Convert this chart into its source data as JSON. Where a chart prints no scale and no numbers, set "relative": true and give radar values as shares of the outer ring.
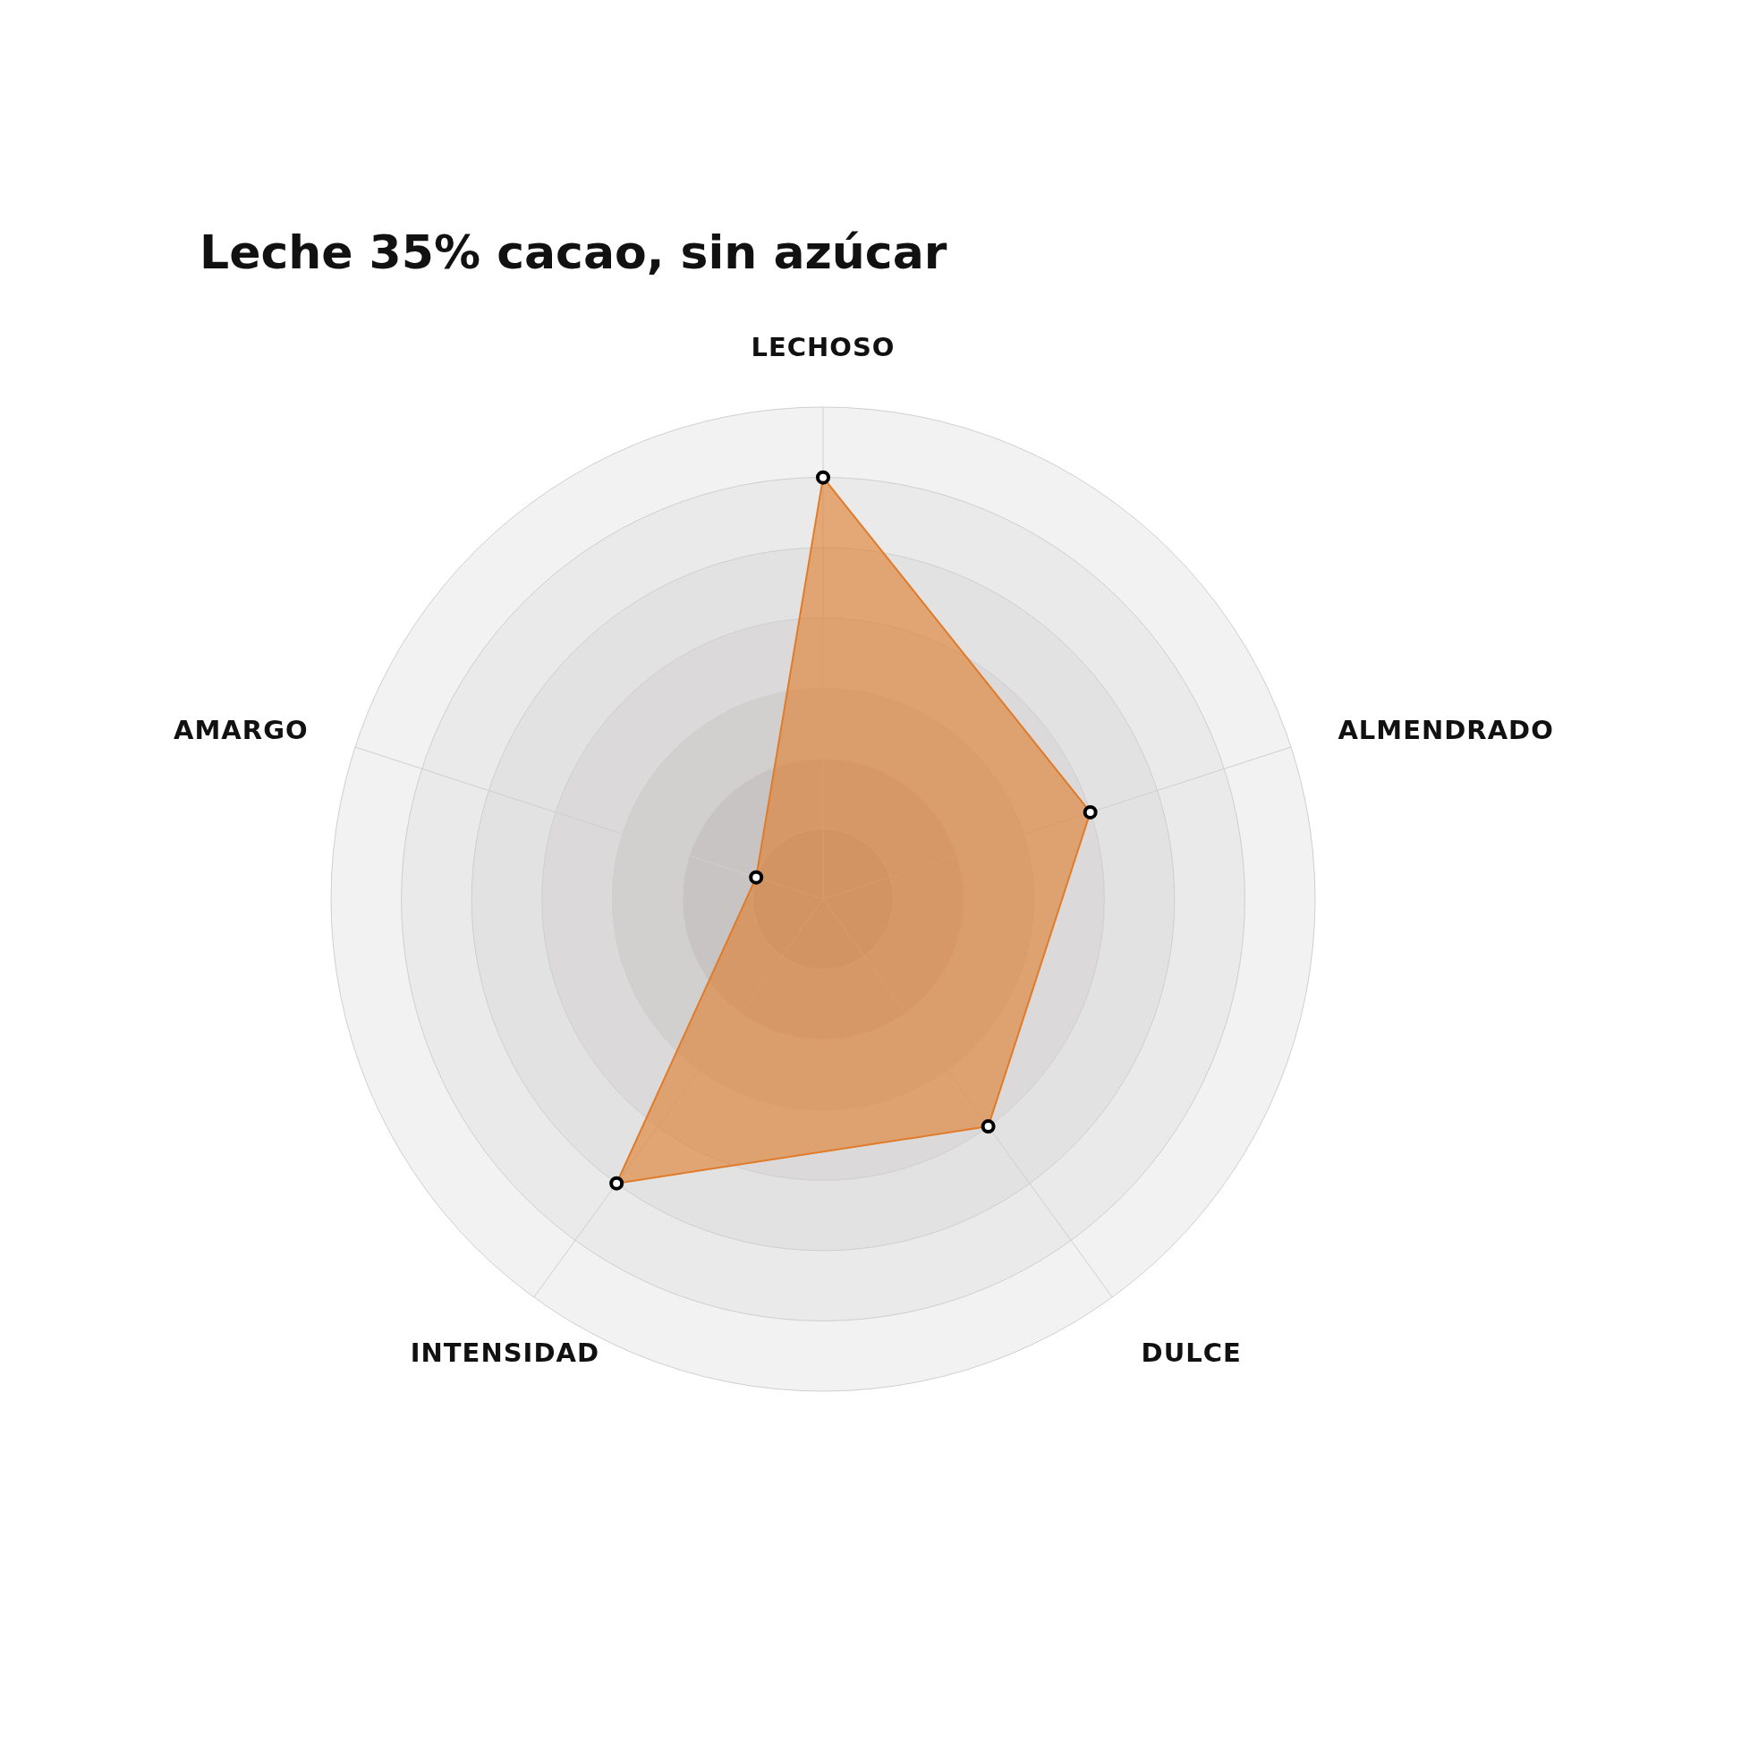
{
  "chart_data": {
    "type": "radar",
    "title": "Leche 35% cacao, sin azúcar",
    "categories": [
      "LECHOSO",
      "ALMENDRADO",
      "DULCE",
      "INTENSIDAD",
      "AMARGO"
    ],
    "relative": true,
    "grid": true,
    "marker": "circle",
    "series": [
      {
        "color": "#e07b2a",
        "values": [
          0.857,
          0.571,
          0.571,
          0.714,
          0.143
        ]
      }
    ]
  }
}
